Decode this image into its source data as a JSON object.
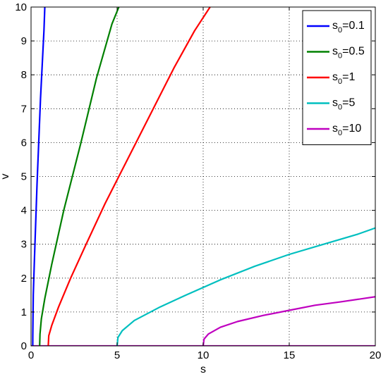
{
  "chart_data": {
    "type": "line",
    "xlabel": "s",
    "ylabel": "v",
    "xlim": [
      0,
      20
    ],
    "ylim": [
      0,
      10
    ],
    "x_ticks": [
      "0",
      "5",
      "10",
      "15",
      "20"
    ],
    "y_ticks": [
      "0",
      "1",
      "2",
      "3",
      "4",
      "5",
      "6",
      "7",
      "8",
      "9",
      "10"
    ],
    "grid": true,
    "legend_position": "top-right",
    "series": [
      {
        "name": "s0=0.1",
        "label_base": "s",
        "label_sub": "0",
        "label_rest": "=0.1",
        "color": "#0000ff",
        "points": [
          [
            0.1,
            0
          ],
          [
            0.102,
            0.3
          ],
          [
            0.13,
            1.5
          ],
          [
            0.2,
            2.6
          ],
          [
            0.35,
            4.8
          ],
          [
            0.55,
            7.3
          ],
          [
            0.75,
            9.3
          ],
          [
            0.8,
            10
          ]
        ]
      },
      {
        "name": "s0=0.5",
        "label_base": "s",
        "label_sub": "0",
        "label_rest": "=0.5",
        "color": "#008000",
        "points": [
          [
            0.5,
            0
          ],
          [
            0.52,
            0.35
          ],
          [
            0.6,
            0.8
          ],
          [
            0.8,
            1.4
          ],
          [
            1.2,
            2.4
          ],
          [
            1.9,
            4.0
          ],
          [
            2.9,
            6.0
          ],
          [
            3.8,
            7.9
          ],
          [
            4.7,
            9.5
          ],
          [
            5.1,
            10
          ]
        ]
      },
      {
        "name": "s0=1",
        "label_base": "s",
        "label_sub": "0",
        "label_rest": "=1",
        "color": "#ff0000",
        "points": [
          [
            1.0,
            0
          ],
          [
            1.03,
            0.3
          ],
          [
            1.2,
            0.6
          ],
          [
            1.6,
            1.15
          ],
          [
            2.3,
            2.0
          ],
          [
            3.2,
            3.0
          ],
          [
            4.3,
            4.2
          ],
          [
            5.6,
            5.5
          ],
          [
            7.0,
            6.9
          ],
          [
            8.3,
            8.2
          ],
          [
            9.5,
            9.3
          ],
          [
            10.4,
            10
          ]
        ]
      },
      {
        "name": "s0=5",
        "label_base": "s",
        "label_sub": "0",
        "label_rest": "=5",
        "color": "#00bfbf",
        "points": [
          [
            5.0,
            0
          ],
          [
            5.05,
            0.25
          ],
          [
            5.3,
            0.45
          ],
          [
            6.0,
            0.75
          ],
          [
            7.5,
            1.15
          ],
          [
            9.0,
            1.5
          ],
          [
            11.0,
            1.95
          ],
          [
            13.0,
            2.35
          ],
          [
            15.0,
            2.7
          ],
          [
            17.0,
            3.0
          ],
          [
            19.0,
            3.3
          ],
          [
            20.0,
            3.48
          ]
        ]
      },
      {
        "name": "s0=10",
        "label_base": "s",
        "label_sub": "0",
        "label_rest": "=10",
        "color": "#bf00bf",
        "points": [
          [
            10.0,
            0
          ],
          [
            10.05,
            0.2
          ],
          [
            10.3,
            0.35
          ],
          [
            11.0,
            0.55
          ],
          [
            12.0,
            0.72
          ],
          [
            13.5,
            0.9
          ],
          [
            15.0,
            1.05
          ],
          [
            16.5,
            1.2
          ],
          [
            18.0,
            1.3
          ],
          [
            20.0,
            1.45
          ]
        ]
      }
    ],
    "baseline": {
      "color": "#bf00bf",
      "points": [
        [
          0,
          0
        ],
        [
          20,
          0
        ]
      ]
    }
  }
}
